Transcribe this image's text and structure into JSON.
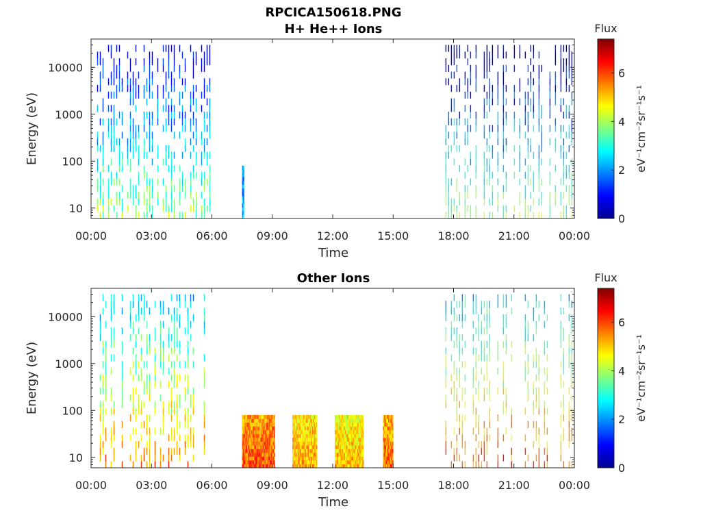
{
  "figure": {
    "title": "RPCICA150618.PNG"
  },
  "colormap": [
    "#00008f",
    "#0000ff",
    "#0080ff",
    "#00ffff",
    "#80ff80",
    "#ffff00",
    "#ff8000",
    "#ff0000",
    "#800000"
  ],
  "colorbar": {
    "label": "Flux",
    "units": "eV⁻¹cm⁻²sr⁻¹s⁻¹",
    "ticks": [
      "0",
      "2",
      "4",
      "6"
    ]
  },
  "chart_data": [
    {
      "type": "heatmap",
      "title": "H+ He++ Ions",
      "xlabel": "Time",
      "ylabel": "Energy (eV)",
      "xticks": [
        "00:00",
        "03:00",
        "06:00",
        "09:00",
        "12:00",
        "15:00",
        "18:00",
        "21:00",
        "00:00"
      ],
      "xlim_hours": [
        0,
        24
      ],
      "yscale": "log",
      "ylim": [
        6,
        40000
      ],
      "yticks": [
        "10",
        "100",
        "1000",
        "10000"
      ],
      "clim": [
        0,
        7.4
      ],
      "segments": [
        {
          "start_h": 0.3,
          "end_h": 6.0,
          "emax": 30000,
          "flux": 2.2
        },
        {
          "start_h": 7.5,
          "end_h": 7.6,
          "emax": 80,
          "flux": 3.0
        },
        {
          "start_h": 17.6,
          "end_h": 23.9,
          "emax": 30000,
          "flux": 2.2
        }
      ]
    },
    {
      "type": "heatmap",
      "title": "Other Ions",
      "xlabel": "Time",
      "ylabel": "Energy (eV)",
      "xticks": [
        "00:00",
        "03:00",
        "06:00",
        "09:00",
        "12:00",
        "15:00",
        "18:00",
        "21:00",
        "00:00"
      ],
      "xlim_hours": [
        0,
        24
      ],
      "yscale": "log",
      "ylim": [
        6,
        40000
      ],
      "yticks": [
        "10",
        "100",
        "1000",
        "10000"
      ],
      "clim": [
        0,
        7.4
      ],
      "segments": [
        {
          "start_h": 0.3,
          "end_h": 6.0,
          "emax": 30000,
          "flux": 4.0
        },
        {
          "start_h": 7.5,
          "end_h": 9.1,
          "emax": 80,
          "flux": 6.6
        },
        {
          "start_h": 10.0,
          "end_h": 11.2,
          "emax": 80,
          "flux": 6.0
        },
        {
          "start_h": 12.1,
          "end_h": 13.5,
          "emax": 80,
          "flux": 5.8
        },
        {
          "start_h": 14.5,
          "end_h": 15.0,
          "emax": 80,
          "flux": 6.4
        },
        {
          "start_h": 17.6,
          "end_h": 23.9,
          "emax": 30000,
          "flux": 4.2
        }
      ]
    }
  ]
}
